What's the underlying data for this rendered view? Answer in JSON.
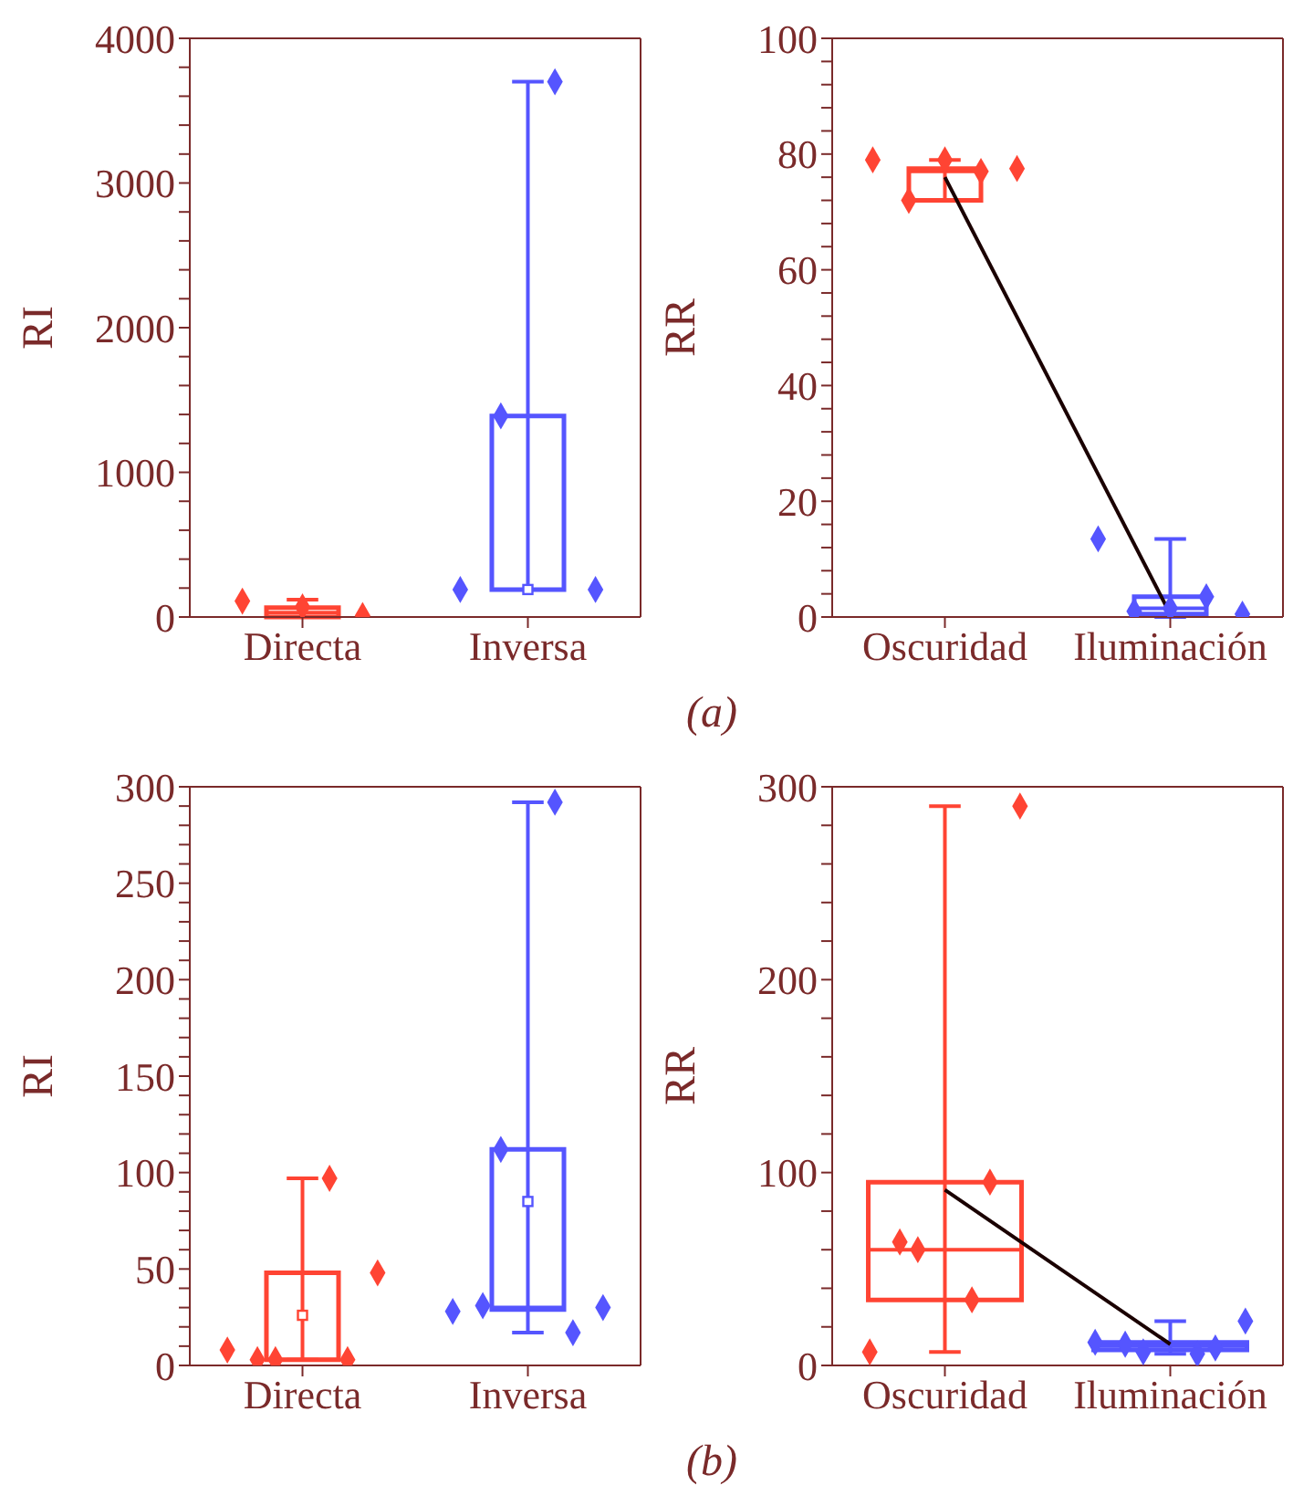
{
  "chart_data": [
    {
      "type": "box",
      "ylabel": "RI",
      "categories": [
        "Directa",
        "Inversa"
      ],
      "ylim": [
        0,
        4000
      ],
      "yticks": [
        0,
        {
          "value": 200,
          "label": null
        },
        {
          "value": 400,
          "label": null
        },
        {
          "value": 600,
          "label": null
        },
        {
          "value": 800,
          "label": null
        },
        1000,
        {
          "value": 1200,
          "label": null
        },
        {
          "value": 1400,
          "label": null
        },
        {
          "value": 1600,
          "label": null
        },
        {
          "value": 1800,
          "label": null
        },
        2000,
        {
          "value": 2200,
          "label": null
        },
        {
          "value": 2400,
          "label": null
        },
        {
          "value": 2600,
          "label": null
        },
        {
          "value": 2800,
          "label": null
        },
        3000,
        {
          "value": 3200,
          "label": null
        },
        {
          "value": 3400,
          "label": null
        },
        {
          "value": 3600,
          "label": null
        },
        {
          "value": 3800,
          "label": null
        },
        4000
      ],
      "marker": "diamond",
      "colors": [
        "#ff4433",
        "#5555ff"
      ],
      "boxes": [
        {
          "low": 0,
          "q1": 0,
          "median": 30,
          "q3": 65,
          "high": 120
        },
        {
          "low": 190,
          "q1": 190,
          "median": 190,
          "q3": 1390,
          "high": 3700,
          "mean": 190
        }
      ],
      "series": [
        {
          "type": "scatter",
          "color": "#ff4433",
          "x": [
            "Directa",
            "Directa",
            "Directa"
          ],
          "values": [
            110,
            70,
            10
          ]
        },
        {
          "type": "scatter",
          "color": "#5555ff",
          "x": [
            "Inversa",
            "Inversa",
            "Inversa",
            "Inversa"
          ],
          "values": [
            190,
            1390,
            3700,
            190
          ]
        }
      ],
      "annotations": [
        "(a)"
      ]
    },
    {
      "type": "box",
      "ylabel": "RR",
      "categories": [
        "Oscuridad",
        "Iluminación"
      ],
      "ylim": [
        0,
        100
      ],
      "yticks": [
        0,
        {
          "value": 4,
          "label": null
        },
        {
          "value": 8,
          "label": null
        },
        {
          "value": 12,
          "label": null
        },
        {
          "value": 16,
          "label": null
        },
        20,
        {
          "value": 24,
          "label": null
        },
        {
          "value": 28,
          "label": null
        },
        {
          "value": 32,
          "label": null
        },
        {
          "value": 36,
          "label": null
        },
        40,
        {
          "value": 44,
          "label": null
        },
        {
          "value": 48,
          "label": null
        },
        {
          "value": 52,
          "label": null
        },
        {
          "value": 56,
          "label": null
        },
        60,
        {
          "value": 64,
          "label": null
        },
        {
          "value": 68,
          "label": null
        },
        {
          "value": 72,
          "label": null
        },
        {
          "value": 76,
          "label": null
        },
        80,
        {
          "value": 84,
          "label": null
        },
        {
          "value": 88,
          "label": null
        },
        {
          "value": 92,
          "label": null
        },
        {
          "value": 96,
          "label": null
        },
        100
      ],
      "marker": "diamond",
      "colors": [
        "#ff4433",
        "#5555ff"
      ],
      "boxes": [
        {
          "low": 72,
          "q1": 72,
          "median": 77,
          "q3": 77.5,
          "high": 79
        },
        {
          "low": 0,
          "q1": 0.5,
          "median": 1.5,
          "q3": 3.5,
          "high": 13.5
        }
      ],
      "series": [
        {
          "type": "scatter",
          "color": "#ff4433",
          "x": [
            "Oscuridad",
            "Oscuridad",
            "Oscuridad",
            "Oscuridad",
            "Oscuridad"
          ],
          "values": [
            79,
            72,
            79,
            77,
            77.5
          ]
        },
        {
          "type": "scatter",
          "color": "#5555ff",
          "x": [
            "Iluminación",
            "Iluminación",
            "Iluminación",
            "Iluminación",
            "Iluminación"
          ],
          "values": [
            13.5,
            1,
            1.5,
            3.5,
            0.5
          ]
        },
        {
          "type": "line",
          "color": "#1a0000",
          "marker": "none",
          "values": [
            76,
            0.5
          ]
        }
      ]
    },
    {
      "type": "box",
      "ylabel": "RI",
      "categories": [
        "Directa",
        "Inversa"
      ],
      "ylim": [
        0,
        300
      ],
      "yticks": [
        0,
        {
          "value": 10,
          "label": null
        },
        {
          "value": 20,
          "label": null
        },
        {
          "value": 30,
          "label": null
        },
        {
          "value": 40,
          "label": null
        },
        50,
        {
          "value": 60,
          "label": null
        },
        {
          "value": 70,
          "label": null
        },
        {
          "value": 80,
          "label": null
        },
        {
          "value": 90,
          "label": null
        },
        100,
        {
          "value": 110,
          "label": null
        },
        {
          "value": 120,
          "label": null
        },
        {
          "value": 130,
          "label": null
        },
        {
          "value": 140,
          "label": null
        },
        150,
        {
          "value": 160,
          "label": null
        },
        {
          "value": 170,
          "label": null
        },
        {
          "value": 180,
          "label": null
        },
        {
          "value": 190,
          "label": null
        },
        200,
        {
          "value": 210,
          "label": null
        },
        {
          "value": 220,
          "label": null
        },
        {
          "value": 230,
          "label": null
        },
        {
          "value": 240,
          "label": null
        },
        250,
        {
          "value": 260,
          "label": null
        },
        {
          "value": 270,
          "label": null
        },
        {
          "value": 280,
          "label": null
        },
        {
          "value": 290,
          "label": null
        },
        300
      ],
      "marker": "diamond",
      "colors": [
        "#ff4433",
        "#5555ff"
      ],
      "boxes": [
        {
          "low": 3,
          "q1": 3,
          "median": 3,
          "q3": 48,
          "high": 97,
          "mean": 26
        },
        {
          "low": 17,
          "q1": 29,
          "median": 30,
          "q3": 112,
          "high": 292,
          "mean": 85
        }
      ],
      "series": [
        {
          "type": "scatter",
          "color": "#ff4433",
          "x": [
            "Directa",
            "Directa",
            "Directa",
            "Directa",
            "Directa",
            "Directa"
          ],
          "values": [
            8,
            3,
            3,
            97,
            3,
            48
          ]
        },
        {
          "type": "scatter",
          "color": "#5555ff",
          "x": [
            "Inversa",
            "Inversa",
            "Inversa",
            "Inversa",
            "Inversa",
            "Inversa"
          ],
          "values": [
            28,
            31,
            112,
            292,
            17,
            30
          ]
        }
      ],
      "annotations": [
        "(b)"
      ]
    },
    {
      "type": "box",
      "ylabel": "RR",
      "categories": [
        "Oscuridad",
        "Iluminación"
      ],
      "ylim": [
        0,
        300
      ],
      "yticks": [
        0,
        {
          "value": 20,
          "label": null
        },
        {
          "value": 40,
          "label": null
        },
        {
          "value": 60,
          "label": null
        },
        {
          "value": 80,
          "label": null
        },
        100,
        {
          "value": 120,
          "label": null
        },
        {
          "value": 140,
          "label": null
        },
        {
          "value": 160,
          "label": null
        },
        {
          "value": 180,
          "label": null
        },
        200,
        {
          "value": 220,
          "label": null
        },
        {
          "value": 240,
          "label": null
        },
        {
          "value": 260,
          "label": null
        },
        {
          "value": 280,
          "label": null
        },
        300
      ],
      "marker": "diamond",
      "colors": [
        "#ff4433",
        "#5555ff"
      ],
      "boxes": [
        {
          "low": 7,
          "q1": 34,
          "median": 60,
          "q3": 95,
          "high": 290
        },
        {
          "low": 6,
          "q1": 8,
          "median": 10,
          "q3": 12,
          "high": 23
        }
      ],
      "series": [
        {
          "type": "scatter",
          "color": "#ff4433",
          "x": [
            "Oscuridad",
            "Oscuridad",
            "Oscuridad",
            "Oscuridad",
            "Oscuridad",
            "Oscuridad"
          ],
          "values": [
            7,
            64,
            60,
            34,
            95,
            290
          ]
        },
        {
          "type": "scatter",
          "color": "#5555ff",
          "x": [
            "Iluminación",
            "Iluminación",
            "Iluminación",
            "Iluminación",
            "Iluminación",
            "Iluminación"
          ],
          "values": [
            12,
            11,
            7,
            6,
            9,
            23
          ]
        },
        {
          "type": "line",
          "color": "#1a0000",
          "marker": "none",
          "values": [
            91,
            11
          ]
        }
      ]
    }
  ]
}
